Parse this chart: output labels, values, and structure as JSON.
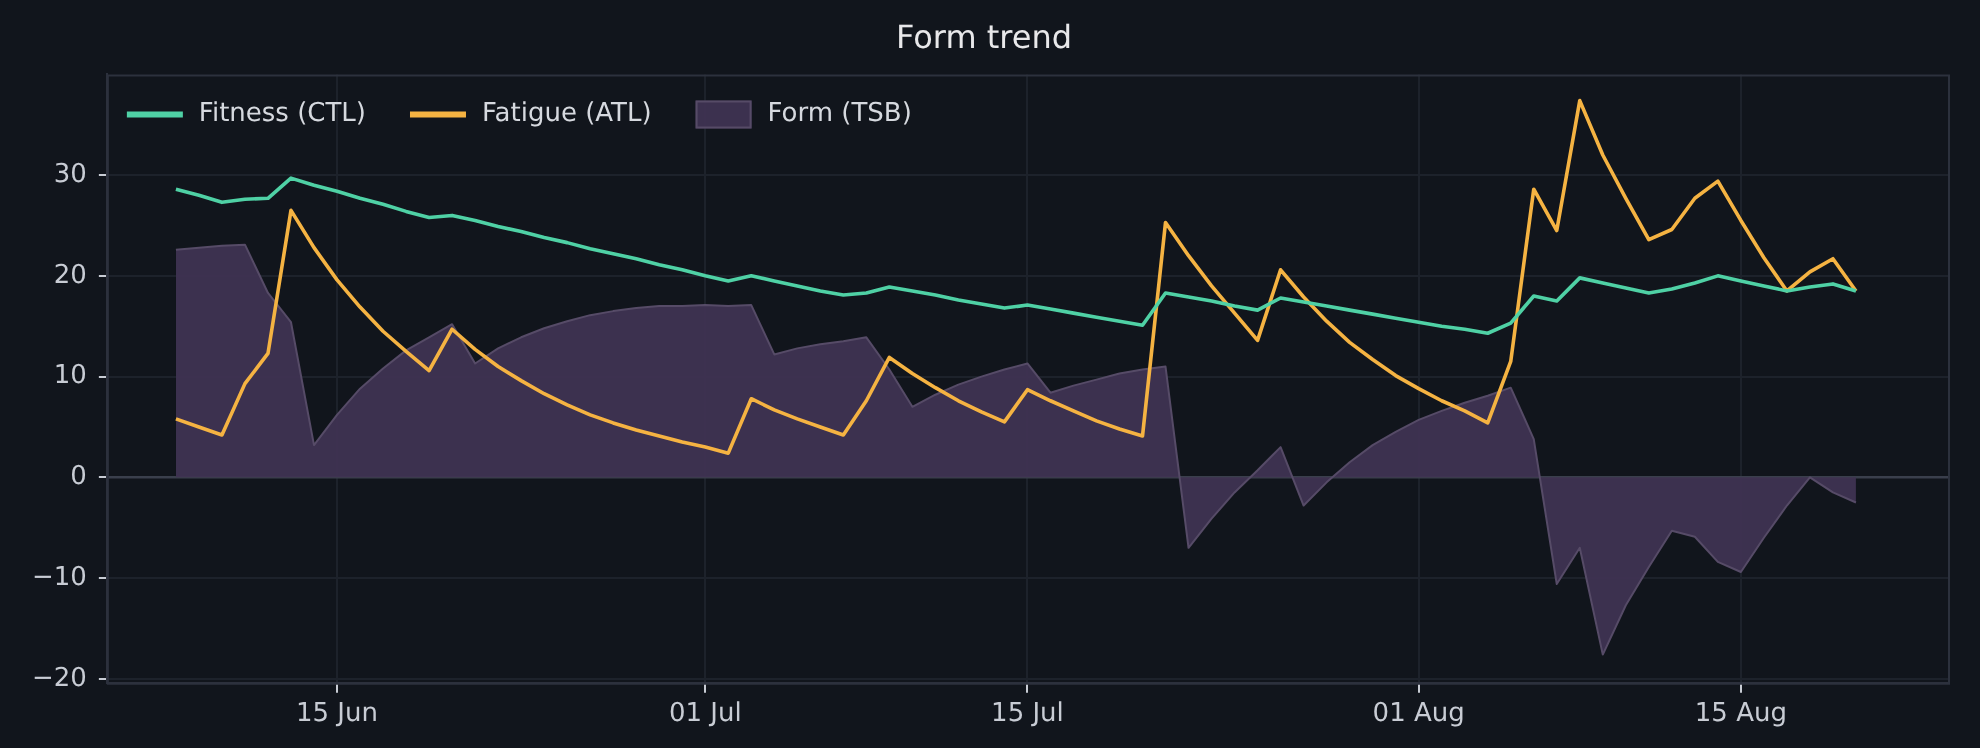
{
  "chart_data": {
    "type": "line",
    "title": "Form trend",
    "x": [
      "--06-08",
      "--06-09",
      "--06-10",
      "--06-11",
      "--06-12",
      "--06-13",
      "--06-14",
      "--06-15",
      "--06-16",
      "--06-17",
      "--06-18",
      "--06-19",
      "--06-20",
      "--06-21",
      "--06-22",
      "--06-23",
      "--06-24",
      "--06-25",
      "--06-26",
      "--06-27",
      "--06-28",
      "--06-29",
      "--06-30",
      "--07-01",
      "--07-02",
      "--07-03",
      "--07-04",
      "--07-05",
      "--07-06",
      "--07-07",
      "--07-08",
      "--07-09",
      "--07-10",
      "--07-11",
      "--07-12",
      "--07-13",
      "--07-14",
      "--07-15",
      "--07-16",
      "--07-17",
      "--07-18",
      "--07-19",
      "--07-20",
      "--07-21",
      "--07-22",
      "--07-23",
      "--07-24",
      "--07-25",
      "--07-26",
      "--07-27",
      "--07-28",
      "--07-29",
      "--07-30",
      "--07-31",
      "--08-01",
      "--08-02",
      "--08-03",
      "--08-04",
      "--08-05",
      "--08-06",
      "--08-07",
      "--08-08",
      "--08-09",
      "--08-10",
      "--08-11",
      "--08-12",
      "--08-13",
      "--08-14",
      "--08-15",
      "--08-16",
      "--08-17",
      "--08-18",
      "--08-19",
      "--08-20"
    ],
    "series": [
      {
        "name": "Fitness (CTL)",
        "type": "line",
        "color": "#4fd1a5",
        "values": [
          28.6,
          28.0,
          27.3,
          27.6,
          27.7,
          29.7,
          29.0,
          28.4,
          27.7,
          27.1,
          26.4,
          25.8,
          26.0,
          25.5,
          24.9,
          24.4,
          23.8,
          23.3,
          22.7,
          22.2,
          21.7,
          21.1,
          20.6,
          20.0,
          19.5,
          20.0,
          19.5,
          19.0,
          18.5,
          18.1,
          18.3,
          18.9,
          18.5,
          18.1,
          17.6,
          17.2,
          16.8,
          17.1,
          16.7,
          16.3,
          15.9,
          15.5,
          15.1,
          18.3,
          17.9,
          17.5,
          17.0,
          16.6,
          17.8,
          17.4,
          17.0,
          16.6,
          16.2,
          15.8,
          15.4,
          15.0,
          14.7,
          14.3,
          15.3,
          18.0,
          17.5,
          19.8,
          19.3,
          18.8,
          18.3,
          18.7,
          19.3,
          20.0,
          19.5,
          19.0,
          18.5,
          18.9,
          19.2,
          18.5
        ]
      },
      {
        "name": "Fatigue (ATL)",
        "type": "line",
        "color": "#f5b342",
        "values": [
          5.8,
          5.0,
          4.2,
          9.3,
          12.3,
          26.5,
          22.8,
          19.6,
          16.9,
          14.5,
          12.5,
          10.6,
          14.7,
          12.7,
          11.0,
          9.6,
          8.3,
          7.2,
          6.2,
          5.4,
          4.7,
          4.1,
          3.5,
          3.0,
          2.4,
          7.8,
          6.7,
          5.8,
          5.0,
          4.2,
          7.6,
          11.9,
          10.3,
          8.9,
          7.6,
          6.5,
          5.5,
          8.7,
          7.6,
          6.6,
          5.6,
          4.8,
          4.1,
          25.3,
          22.0,
          19.0,
          16.3,
          13.6,
          20.6,
          17.9,
          15.5,
          13.4,
          11.7,
          10.1,
          8.8,
          7.6,
          6.6,
          5.4,
          11.5,
          28.6,
          24.5,
          37.4,
          32.0,
          27.7,
          23.6,
          24.6,
          27.7,
          29.4,
          25.5,
          21.8,
          18.5,
          20.4,
          21.7,
          18.5
        ]
      },
      {
        "name": "Form (TSB)",
        "type": "area",
        "color": "#3f3352",
        "values": [
          22.6,
          22.8,
          23.0,
          23.1,
          18.3,
          15.4,
          3.2,
          6.2,
          8.8,
          10.8,
          12.6,
          13.9,
          15.2,
          11.3,
          12.8,
          13.9,
          14.8,
          15.5,
          16.1,
          16.5,
          16.8,
          17.0,
          17.0,
          17.1,
          17.0,
          17.1,
          12.2,
          12.8,
          13.2,
          13.5,
          13.9,
          10.7,
          7.0,
          8.2,
          9.2,
          10.0,
          10.7,
          11.3,
          8.4,
          9.1,
          9.7,
          10.3,
          10.7,
          11.0,
          -7.0,
          -4.1,
          -1.5,
          0.7,
          3.0,
          -2.8,
          -0.5,
          1.5,
          3.2,
          4.5,
          5.7,
          6.6,
          7.4,
          8.1,
          8.9,
          3.8,
          -10.6,
          -7.0,
          -17.6,
          -12.7,
          -8.9,
          -5.3,
          -5.9,
          -8.4,
          -9.4,
          -6.0,
          -2.8,
          0.0,
          -1.5,
          -2.5
        ]
      }
    ],
    "xlim": [
      "--06-05",
      "--08-24"
    ],
    "xticks": [
      {
        "value": "--06-15",
        "label": "15 Jun"
      },
      {
        "value": "--07-01",
        "label": "01 Jul"
      },
      {
        "value": "--07-15",
        "label": "15 Jul"
      },
      {
        "value": "--08-01",
        "label": "01 Aug"
      },
      {
        "value": "--08-15",
        "label": "15 Aug"
      }
    ],
    "ylim": [
      -20.4,
      40
    ],
    "yticks": [
      {
        "value": -20,
        "label": "−20"
      },
      {
        "value": -10,
        "label": "−10"
      },
      0,
      10,
      20,
      30
    ],
    "ref_lines": [
      {
        "axis": "y",
        "value": 0,
        "color": "#3a3f4c"
      }
    ],
    "grid": true,
    "legend": "top left",
    "marker": "none",
    "line_style": "solid"
  }
}
